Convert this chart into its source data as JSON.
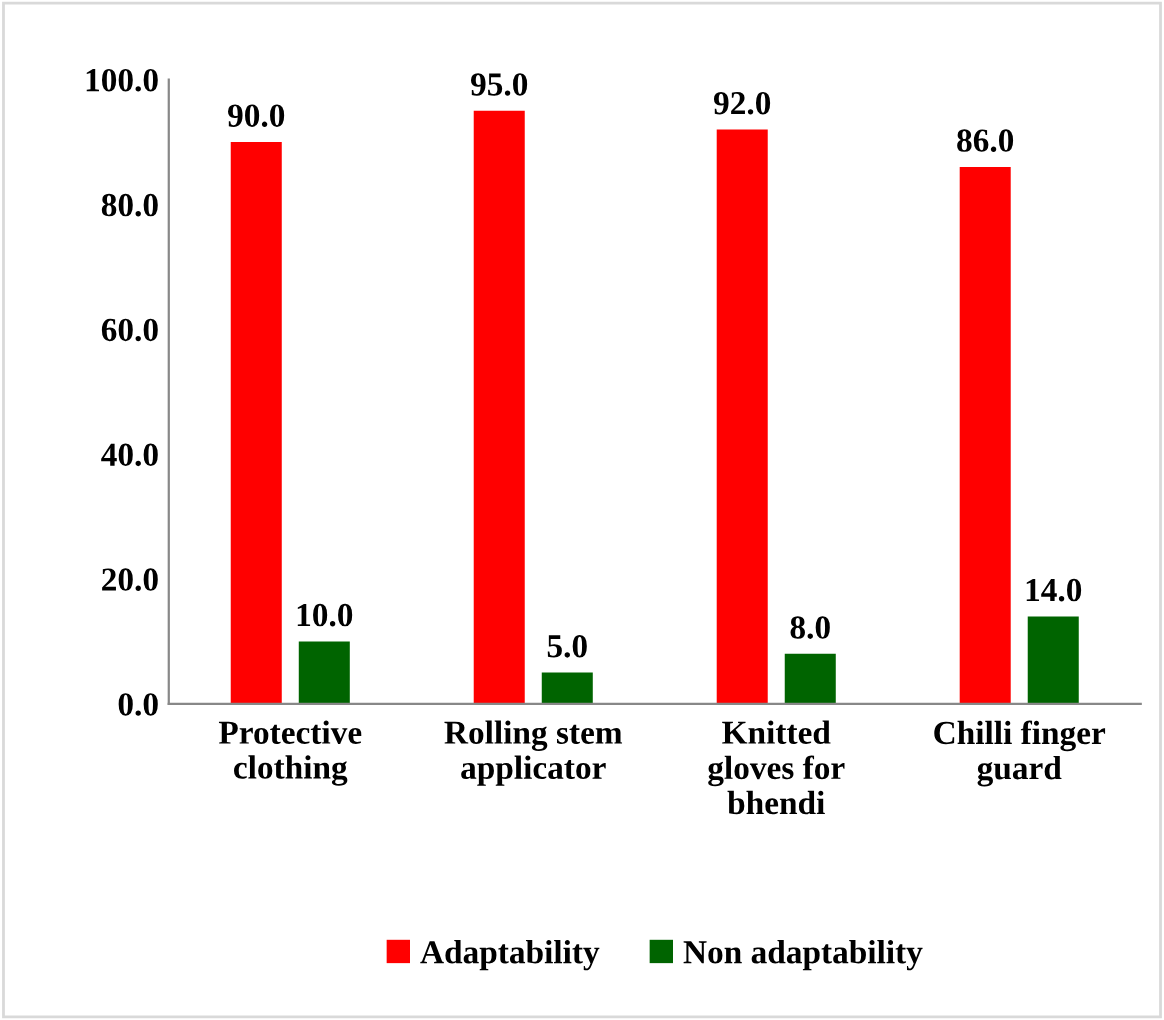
{
  "chart_data": {
    "type": "bar",
    "categories": [
      "Protective clothing",
      "Rolling stem applicator",
      "Knitted gloves for bhendi",
      "Chilli finger guard"
    ],
    "series": [
      {
        "name": "Adaptability",
        "color": "#ff0000",
        "values": [
          90,
          95,
          92,
          86
        ],
        "value_labels": [
          "90.0",
          "95.0",
          "92.0",
          "86.0"
        ]
      },
      {
        "name": "Non adaptability",
        "color": "#006400",
        "values": [
          10,
          5,
          8,
          14
        ],
        "value_labels": [
          "10.0",
          "5.0",
          "8.0",
          "14.0"
        ]
      }
    ],
    "ylim": [
      0,
      100
    ],
    "yticks": [
      {
        "value": 0,
        "label": "0.0"
      },
      {
        "value": 20,
        "label": "20.0"
      },
      {
        "value": 40,
        "label": "40.0"
      },
      {
        "value": 60,
        "label": "60.0"
      },
      {
        "value": 80,
        "label": "80.0"
      },
      {
        "value": 100,
        "label": "100.0"
      }
    ],
    "grid": false,
    "legend": "bottom"
  }
}
